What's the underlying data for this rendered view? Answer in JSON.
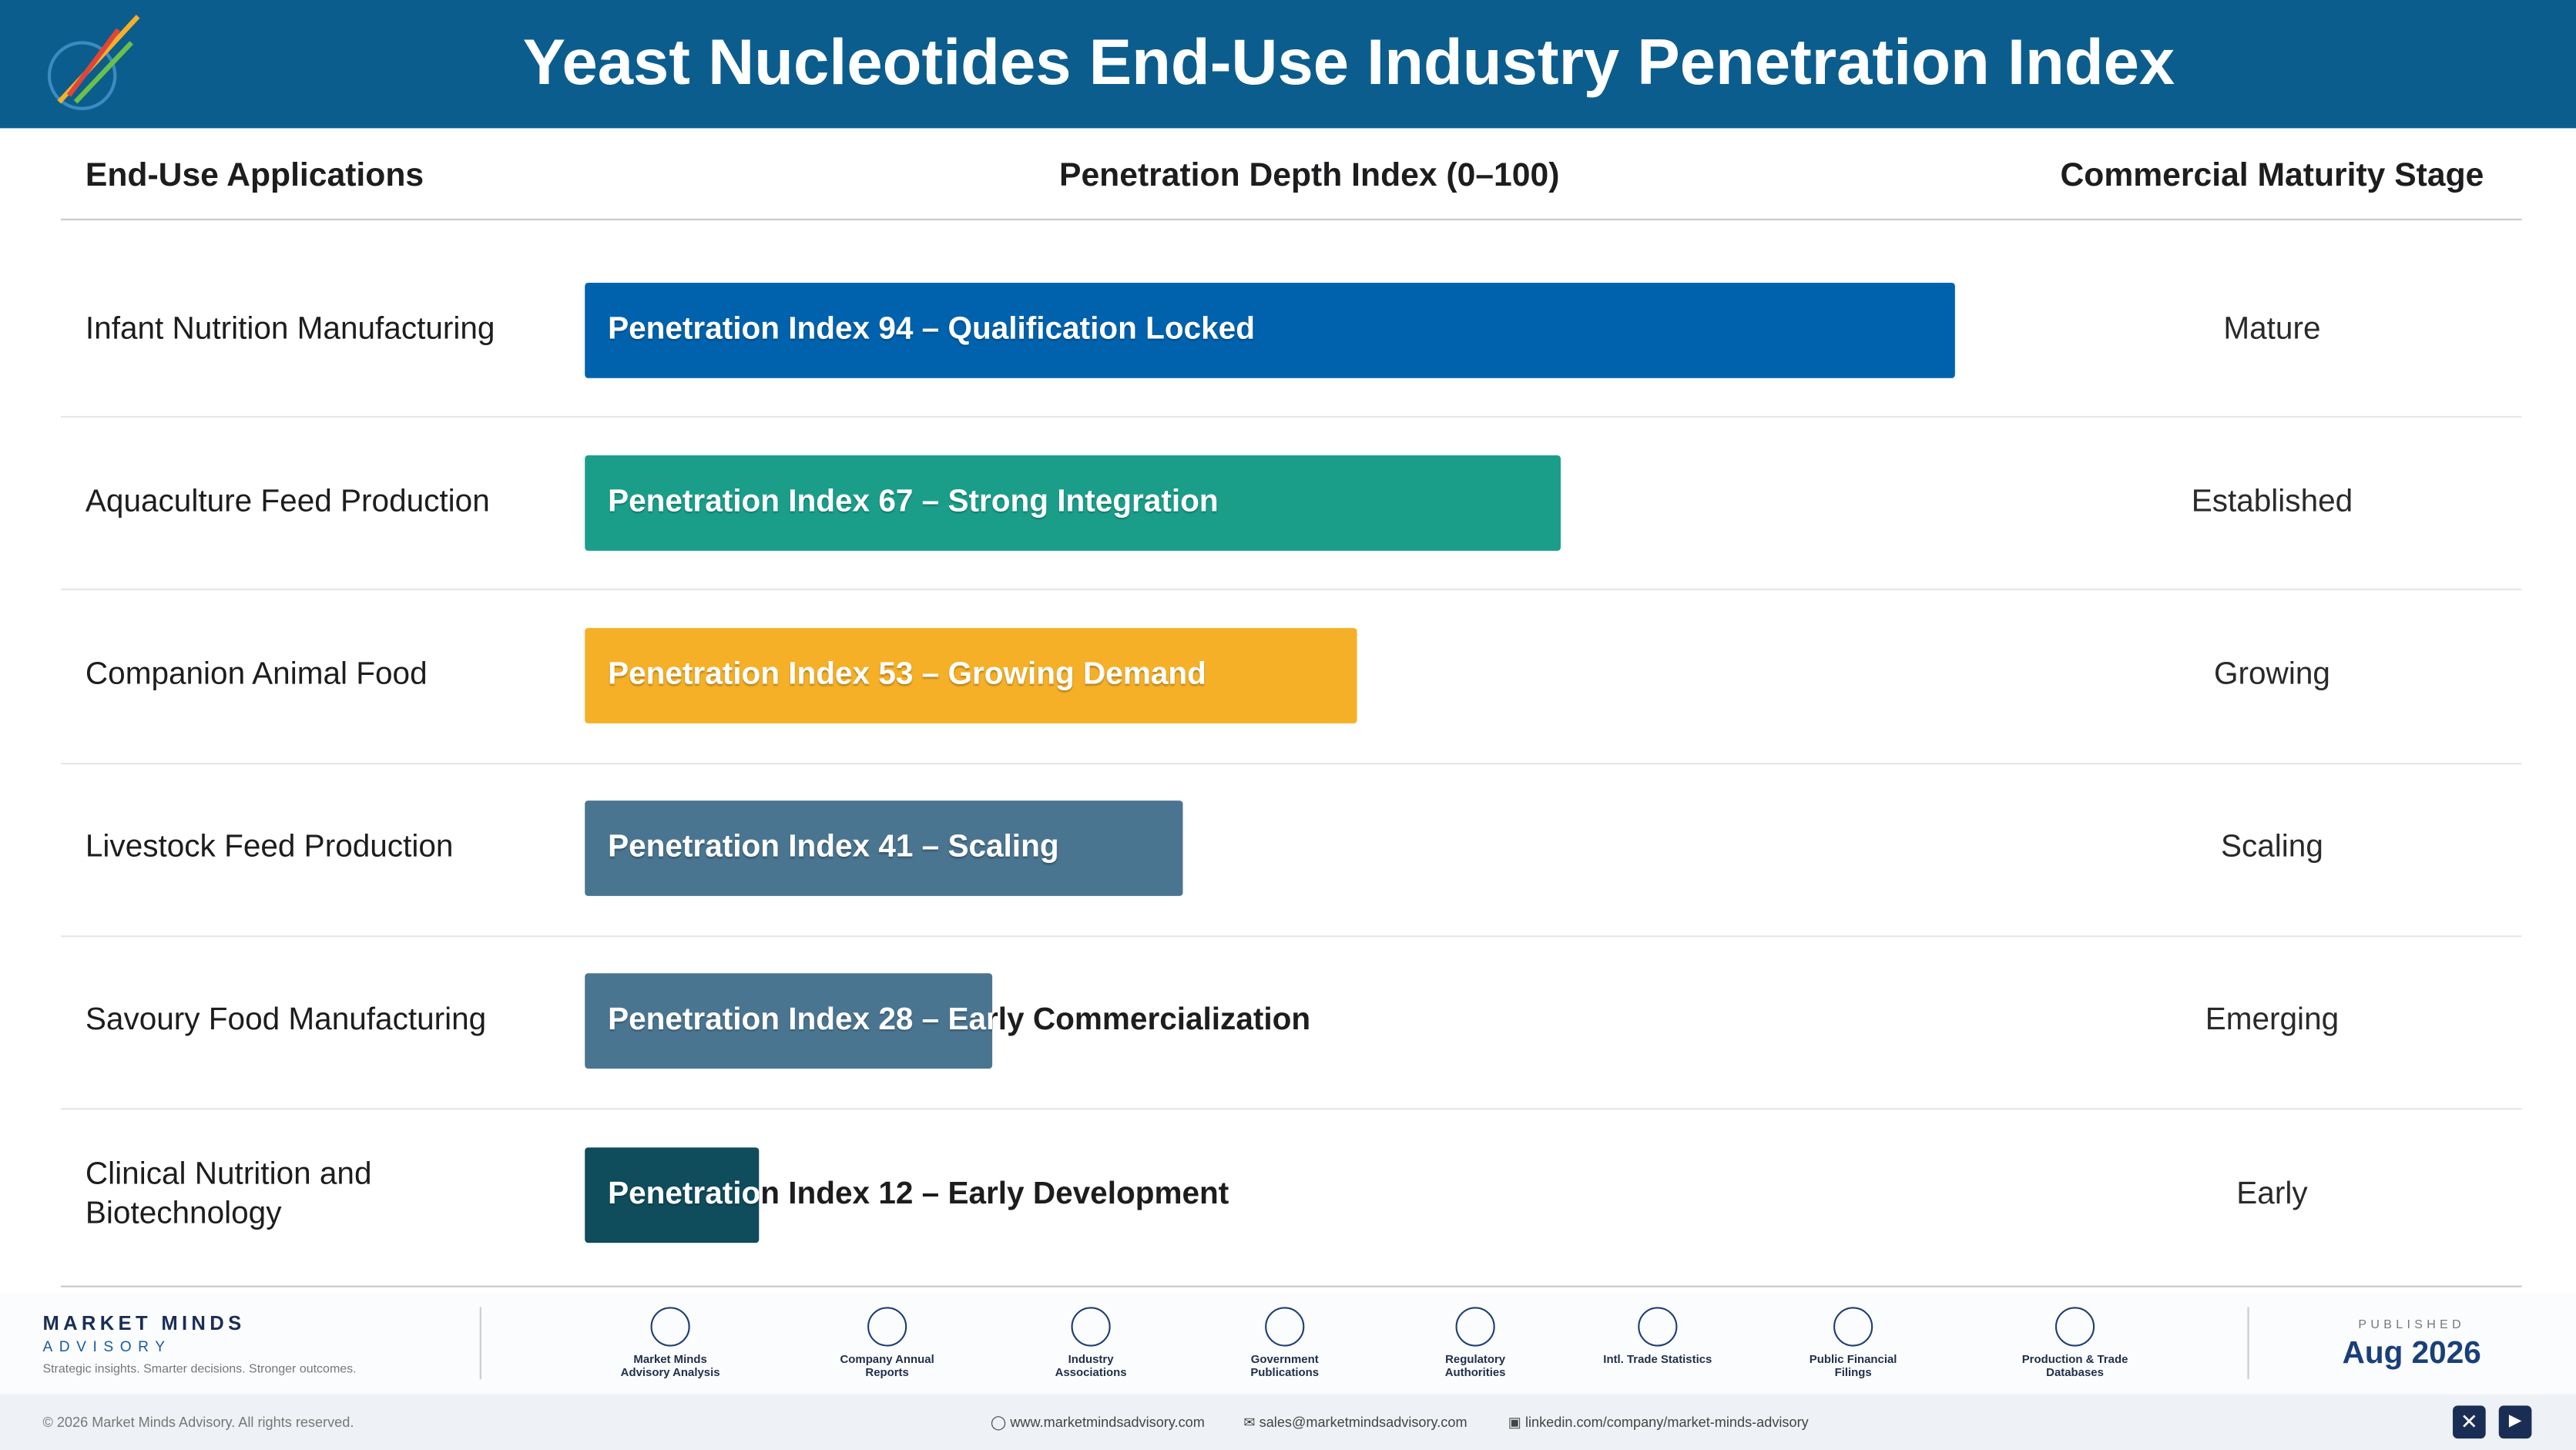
{
  "header": {
    "title": "Yeast Nucleotides End-Use Industry Penetration Index"
  },
  "chart_data": {
    "type": "bar",
    "orientation": "horizontal",
    "columns": [
      "End-Use Applications",
      "Penetration Depth Index (0–100)",
      "Commercial Maturity Stage"
    ],
    "categories": [
      "Infant Nutrition Manufacturing",
      "Aquaculture Feed Production",
      "Companion Animal Food",
      "Livestock Feed Production",
      "Savoury Food Manufacturing",
      "Clinical Nutrition and Biotechnology"
    ],
    "values": [
      94,
      67,
      53,
      41,
      28,
      12
    ],
    "value_labels": [
      "Penetration Index 94 – Qualification Locked",
      "Penetration Index 67 – Strong Integration",
      "Penetration Index 53 – Growing Demand",
      "Penetration Index 41 – Scaling",
      "Penetration Index 28 – Early Commercialization",
      "Penetration Index 12 – Early Development"
    ],
    "colors": [
      "#0062ad",
      "#1a9e8a",
      "#f5b027",
      "#4a7591",
      "#4a7591",
      "#0f4c5c"
    ],
    "stages": [
      "Mature",
      "Established",
      "Growing",
      "Scaling",
      "Emerging",
      "Early"
    ],
    "xlim": [
      0,
      100
    ]
  },
  "footer": {
    "brand": "MARKET MINDS",
    "brand_sub": "ADVISORY",
    "tagline": "Strategic insights. Smarter decisions. Stronger outcomes.",
    "sources": [
      "Market Minds Advisory Analysis",
      "Company Annual Reports",
      "Industry Associations",
      "Government Publications",
      "Regulatory Authorities",
      "Intl. Trade Statistics",
      "Public Financial Filings",
      "Production & Trade Databases"
    ],
    "published_label": "PUBLISHED",
    "published": "Aug 2026",
    "copyright": "© 2026 Market Minds Advisory. All rights reserved.",
    "website": "www.marketmindsadvisory.com",
    "email": "sales@marketmindsadvisory.com",
    "linkedin": "linkedin.com/company/market-minds-advisory"
  }
}
